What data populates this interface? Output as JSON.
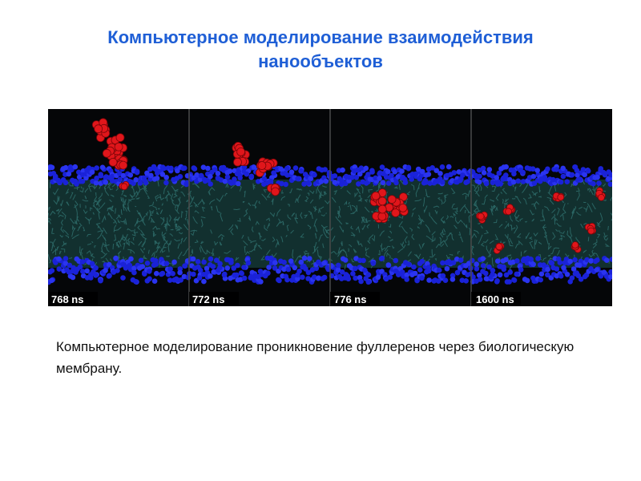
{
  "slide": {
    "title_line1": "Компьютерное моделирование  взаимодействия",
    "title_line2": "нанообъектов",
    "caption": "Компьютерное моделирование проникновение фуллеренов через биологическую мембрану."
  },
  "figure": {
    "panels": [
      {
        "label": "768 ns"
      },
      {
        "label": "772 ns"
      },
      {
        "label": "776 ns"
      },
      {
        "label": "1600 ns"
      }
    ],
    "colors": {
      "background": "#050608",
      "head_groups": "#1a22d8",
      "lipid_tails": "#2f6f6c",
      "fullerene": "#e0161b",
      "label_text": "#ffffff"
    }
  }
}
